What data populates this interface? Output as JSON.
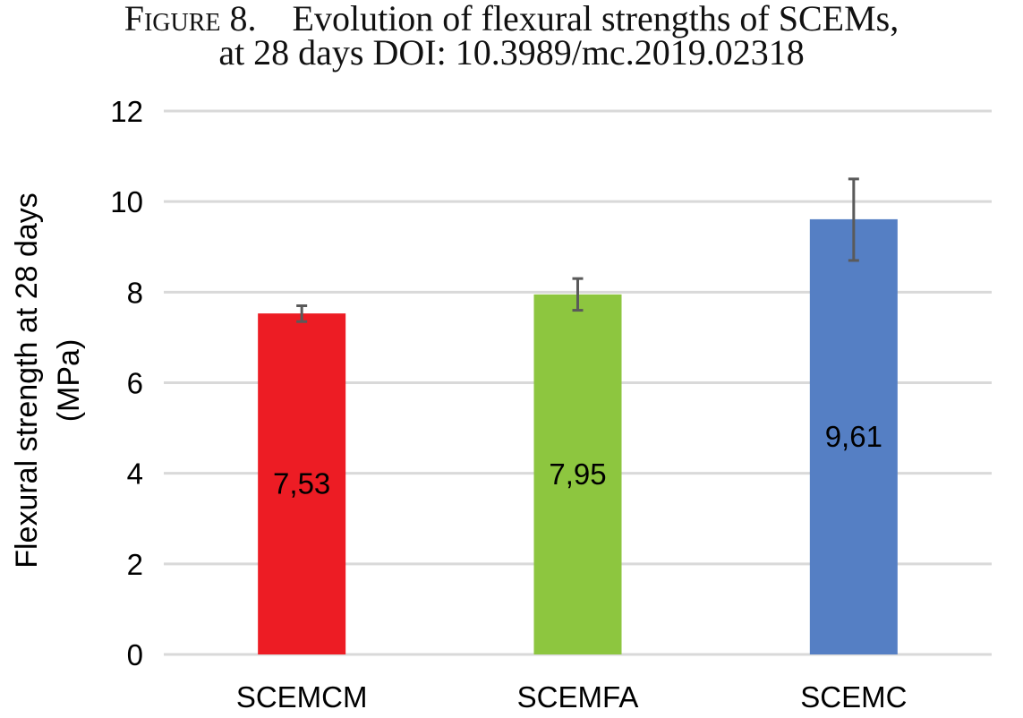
{
  "caption": {
    "prefix": "Figure 8.",
    "line1": "Evolution of flexural strengths of SCEMs,",
    "line2": "at 28 days DOI: 10.3989/mc.2019.02318"
  },
  "chart_data": {
    "type": "bar",
    "title": "",
    "xlabel": "",
    "ylabel_lines": [
      "Flexural strength at 28 days",
      "(MPa)"
    ],
    "categories": [
      "SCEMCM",
      "SCEMFA",
      "SCEMC"
    ],
    "values": [
      7.53,
      7.95,
      9.61
    ],
    "value_labels": [
      "7,53",
      "7,95",
      "9,61"
    ],
    "error_bars": [
      {
        "low": 7.35,
        "high": 7.7
      },
      {
        "low": 7.6,
        "high": 8.3
      },
      {
        "low": 8.7,
        "high": 10.5
      }
    ],
    "bar_colors": [
      "#ED1C24",
      "#8DC63F",
      "#557FC4"
    ],
    "error_bar_color": "#5a5a5a",
    "grid_color": "#d9d9d9",
    "ylim": [
      0,
      12
    ],
    "yticks": [
      0,
      2,
      4,
      6,
      8,
      10,
      12
    ],
    "grid": true,
    "legend": "none"
  }
}
